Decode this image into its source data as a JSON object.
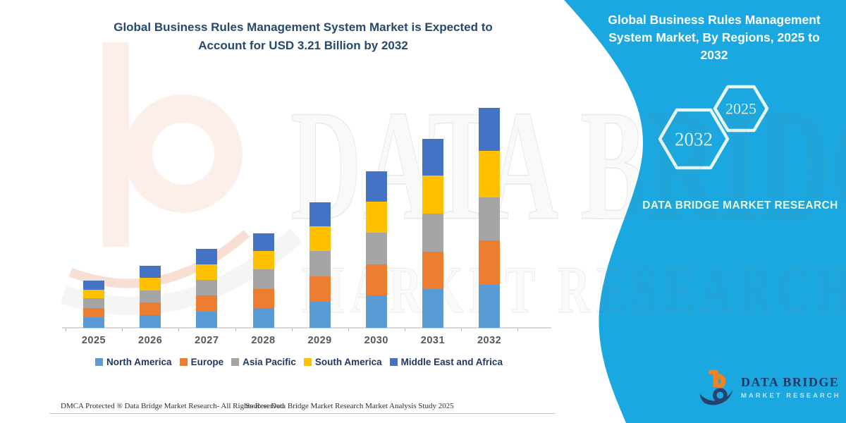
{
  "colors": {
    "panel_cyan": "#1BA7E0",
    "title_navy": "#27496D",
    "legend_navy": "#1F3864",
    "hex_stroke": "#E9F7F2"
  },
  "header": {
    "title_l1": "Global Business Rules Management System Market is Expected to",
    "title_l2": "Account for USD 3.21 Billion by 2032"
  },
  "chart_data": {
    "type": "bar",
    "stacked": true,
    "title": "Global Business Rules Management System Market, By Regions, 2025 to 2032",
    "unit": "USD Billion",
    "categories": [
      "2025",
      "2026",
      "2027",
      "2028",
      "2029",
      "2030",
      "2031",
      "2032"
    ],
    "series": [
      {
        "name": "North America",
        "color": "#5B9BD5",
        "values": [
          0.15,
          0.19,
          0.24,
          0.29,
          0.38,
          0.47,
          0.57,
          0.63
        ]
      },
      {
        "name": "Europe",
        "color": "#ED7D31",
        "values": [
          0.14,
          0.18,
          0.23,
          0.28,
          0.37,
          0.46,
          0.54,
          0.65
        ]
      },
      {
        "name": "Asia Pacific",
        "color": "#A5A5A5",
        "values": [
          0.14,
          0.18,
          0.23,
          0.28,
          0.37,
          0.46,
          0.56,
          0.62
        ]
      },
      {
        "name": "South America",
        "color": "#FFC000",
        "values": [
          0.13,
          0.18,
          0.23,
          0.27,
          0.36,
          0.45,
          0.55,
          0.68
        ]
      },
      {
        "name": "Middle East and Africa",
        "color": "#4472C4",
        "values": [
          0.13,
          0.18,
          0.22,
          0.26,
          0.35,
          0.45,
          0.54,
          0.63
        ]
      }
    ],
    "totals": [
      0.69,
      0.91,
      1.15,
      1.38,
      1.83,
      2.29,
      2.76,
      3.21
    ],
    "ylim": [
      0,
      3.4
    ],
    "grid": false,
    "legend_position": "bottom",
    "xlabel": "",
    "ylabel": ""
  },
  "side_panel": {
    "title": "Global Business Rules Management System Market, By Regions, 2025 to 2032",
    "hexagons": [
      {
        "label": "2032"
      },
      {
        "label": "2025"
      }
    ],
    "brand": "DATA BRIDGE MARKET RESEARCH"
  },
  "watermark": {
    "line1": "DATA BRIDGE",
    "line2": "MARKET RESEARCH"
  },
  "logo": {
    "line1": "DATA BRIDGE",
    "line2": "MARKET RESEARCH"
  },
  "footer": {
    "dmca": "DMCA Protected ® Data Bridge Market Research- All Rights Reserved.",
    "source": "Source: Data Bridge Market Research Market Analysis Study 2025"
  }
}
